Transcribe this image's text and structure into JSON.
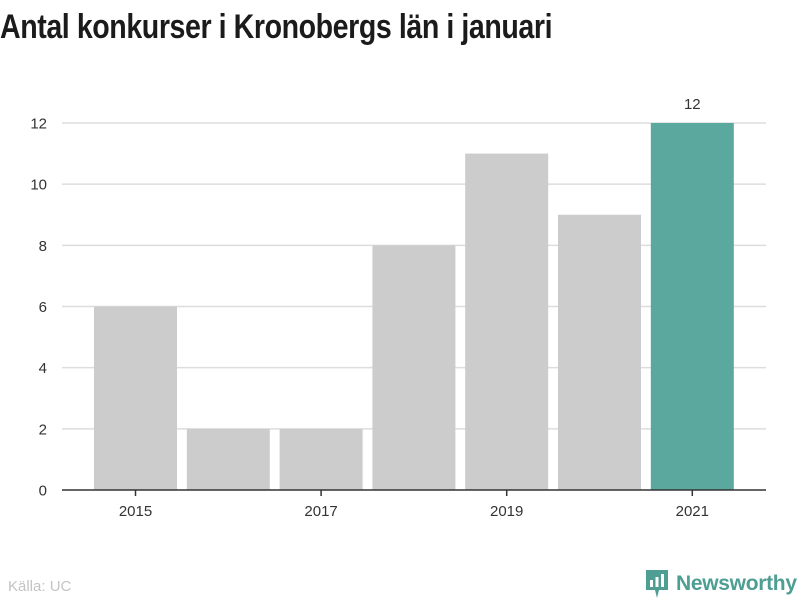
{
  "title": "Antal konkurser i Kronobergs län i januari",
  "source": "Källa: UC",
  "brand": "Newsworthy",
  "colors": {
    "bar": "#cccccc",
    "highlight": "#5ba89e",
    "grid": "#dddddd",
    "axis": "#333333",
    "text": "#333333",
    "brand": "#4e9e93"
  },
  "chart_data": {
    "type": "bar",
    "title": "Antal konkurser i Kronobergs län i januari",
    "xlabel": "",
    "ylabel": "",
    "categories": [
      "2015",
      "2016",
      "2017",
      "2018",
      "2019",
      "2020",
      "2021"
    ],
    "values": [
      6,
      2,
      2,
      8,
      11,
      9,
      12
    ],
    "x_tick_labels": [
      "2015",
      "",
      "2017",
      "",
      "2019",
      "",
      "2021"
    ],
    "y_ticks": [
      0,
      2,
      4,
      6,
      8,
      10,
      12
    ],
    "ylim": [
      0,
      12
    ],
    "grid": true,
    "highlight_index": 6,
    "data_labels": [
      "",
      "",
      "",
      "",
      "",
      "",
      "12"
    ]
  }
}
